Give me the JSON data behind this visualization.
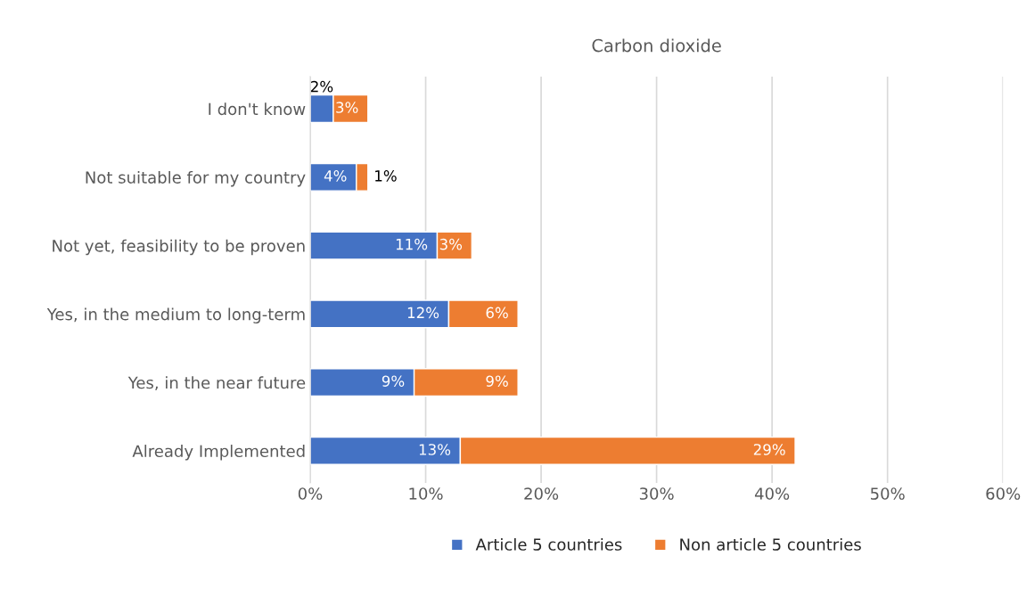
{
  "chart_data": {
    "type": "bar",
    "orientation": "horizontal",
    "stacked": true,
    "title": "Carbon dioxide",
    "categories": [
      "I don't know",
      "Not suitable for my country",
      "Not yet, feasibility to be proven",
      "Yes, in the medium to long-term",
      "Yes, in the near future",
      "Already Implemented"
    ],
    "series": [
      {
        "name": "Article 5 countries",
        "color": "#4472c4",
        "values": [
          2,
          4,
          11,
          12,
          9,
          13
        ],
        "value_labels": [
          "2%",
          "4%",
          "11%",
          "12%",
          "9%",
          "13%"
        ]
      },
      {
        "name": "Non article 5 countries",
        "color": "#ed7d31",
        "values": [
          3,
          1,
          3,
          6,
          9,
          29
        ],
        "value_labels": [
          "3%",
          "1%",
          "3%",
          "6%",
          "9%",
          "29%"
        ]
      }
    ],
    "xlim": [
      0,
      60
    ],
    "xticks": [
      {
        "value": 0,
        "label": "0%"
      },
      {
        "value": 10,
        "label": "10%"
      },
      {
        "value": 20,
        "label": "20%"
      },
      {
        "value": 30,
        "label": "30%"
      },
      {
        "value": 40,
        "label": "40%"
      },
      {
        "value": 50,
        "label": "50%"
      },
      {
        "value": 60,
        "label": "60%"
      }
    ],
    "grid": "x",
    "legend": "bottom"
  }
}
